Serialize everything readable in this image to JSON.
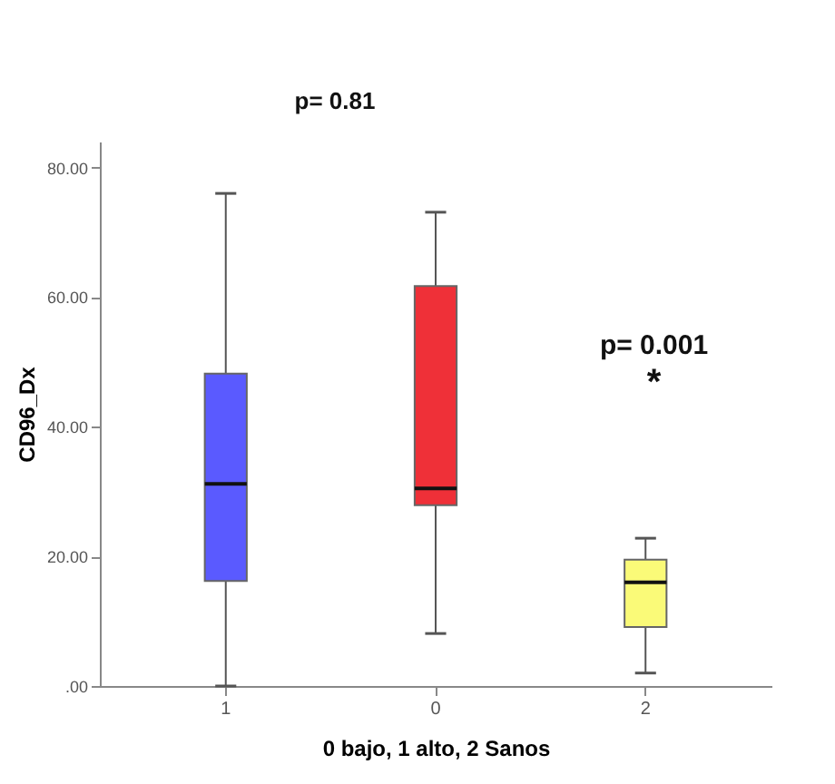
{
  "chart_data": {
    "type": "box",
    "xlabel": "0 bajo, 1 alto, 2 Sanos",
    "ylabel": "CD96_Dx",
    "categories": [
      "1",
      "0",
      "2"
    ],
    "colors": [
      "#5a5aff",
      "#ef3038",
      "#fafa78"
    ],
    "boxes": [
      {
        "low": 0,
        "q1": 16.2,
        "median": 31.2,
        "q3": 48.2,
        "high": 76
      },
      {
        "low": 8.1,
        "q1": 27.9,
        "median": 30.5,
        "q3": 61.7,
        "high": 73.1
      },
      {
        "low": 2,
        "q1": 9.1,
        "median": 16,
        "q3": 19.5,
        "high": 22.8
      }
    ],
    "ylim": [
      0,
      84
    ],
    "yticks": [
      {
        "value": 0,
        "label": ".00"
      },
      {
        "value": 20,
        "label": "20.00"
      },
      {
        "value": 40,
        "label": "40.00"
      },
      {
        "value": 60,
        "label": "60.00"
      },
      {
        "value": 80,
        "label": "80.00"
      }
    ],
    "annotations": [
      "p= 0.81",
      "p= 0.001",
      "*"
    ],
    "grid": false,
    "legend": false
  }
}
